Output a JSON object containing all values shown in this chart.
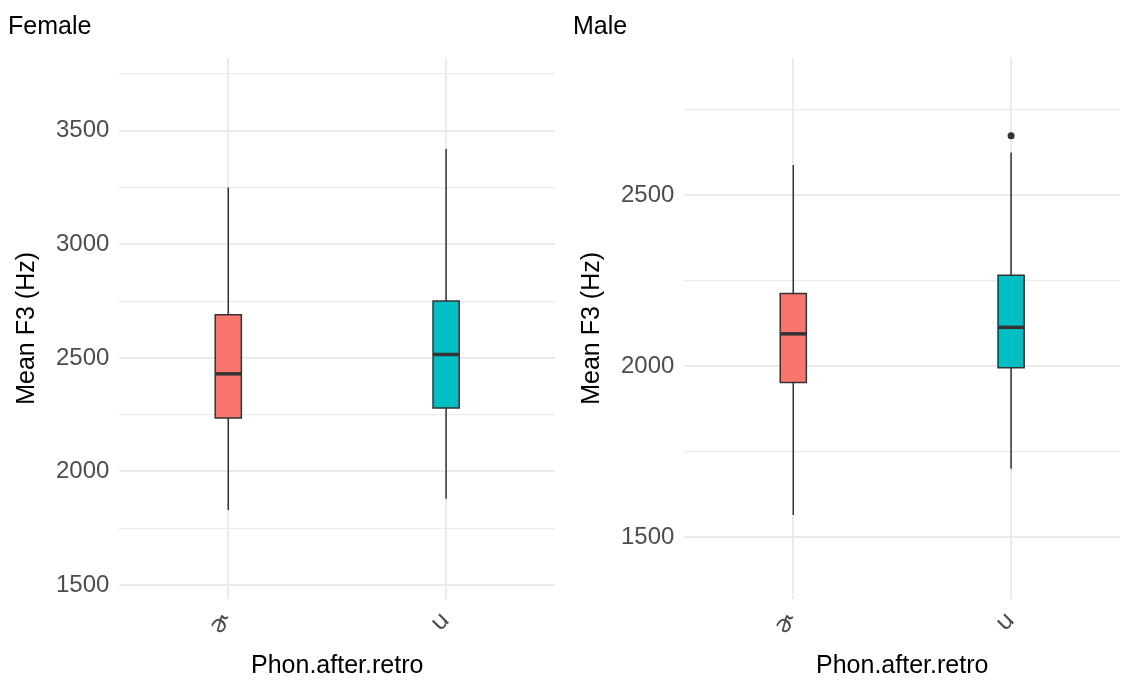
{
  "chart_data": [
    {
      "type": "box",
      "title": "Female",
      "xlabel": "Phon.after.retro",
      "ylabel": "Mean F3 (Hz)",
      "categories": [
        "ɚ",
        "u"
      ],
      "colors": [
        "#f8766d",
        "#00bfc4"
      ],
      "boxes": [
        {
          "low": 1830,
          "q1": 2235,
          "median": 2430,
          "q3": 2690,
          "high": 3250
        },
        {
          "low": 1880,
          "q1": 2280,
          "median": 2515,
          "q3": 2750,
          "high": 3420
        }
      ],
      "ylim": [
        1440,
        3820
      ],
      "yticks": [
        1500,
        {
          "value": 1750,
          "label": null
        },
        2000,
        {
          "value": 2250,
          "label": null
        },
        2500,
        {
          "value": 2750,
          "label": null
        },
        3000,
        {
          "value": 3250,
          "label": null
        },
        3500,
        {
          "value": 3750,
          "label": null
        }
      ],
      "grid": true,
      "legend": false
    },
    {
      "type": "box",
      "title": "Male",
      "xlabel": "Phon.after.retro",
      "ylabel": "Mean F3 (Hz)",
      "categories": [
        "ɚ",
        "u"
      ],
      "colors": [
        "#f8766d",
        "#00bfc4"
      ],
      "boxes": [
        {
          "low": 1565,
          "q1": 1952,
          "median": 2094,
          "q3": 2212,
          "high": 2587
        },
        {
          "low": 1700,
          "q1": 1995,
          "median": 2113,
          "q3": 2265,
          "high": 2624,
          "outliers": [
            2673
          ]
        }
      ],
      "ylim": [
        1320,
        2900
      ],
      "yticks": [
        1500,
        {
          "value": 1750,
          "label": null
        },
        2000,
        {
          "value": 2250,
          "label": null
        },
        2500,
        {
          "value": 2750,
          "label": null
        }
      ],
      "grid": true,
      "legend": false
    }
  ]
}
